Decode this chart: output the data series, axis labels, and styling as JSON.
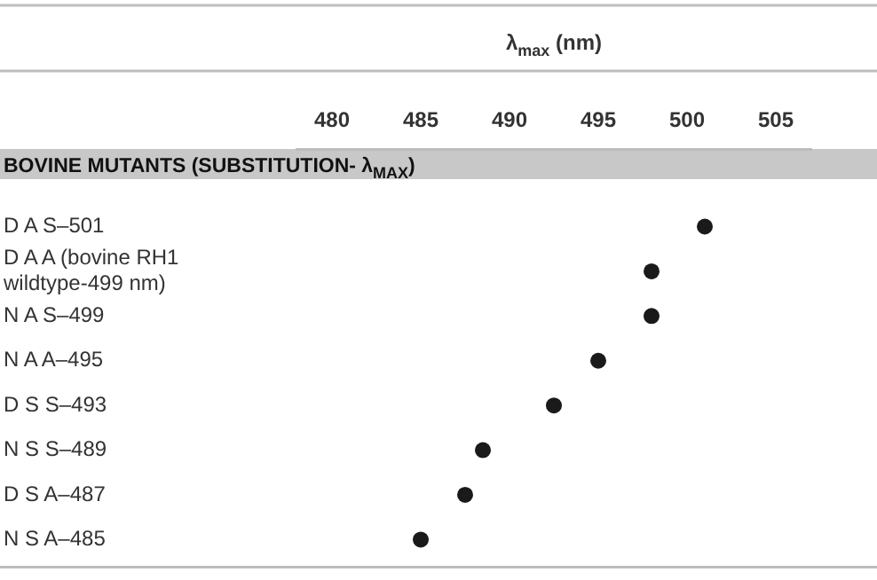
{
  "chart_data": {
    "type": "scatter",
    "orientation": "horizontal",
    "title": "λ$_{max}$ (nm)",
    "subtitle": "BOVINE MUTANTS (SUBSTITUTION- λ$_{MAX}$)",
    "categories": [
      "D A S–501",
      "D A A (bovine RH1 wildtype-499 nm)",
      "N A S–499",
      "N A A–495",
      "D S S–493",
      "N S S–489",
      "D S A–487",
      "N S A–485"
    ],
    "values": [
      501,
      498,
      498,
      495,
      492.5,
      488.5,
      487.5,
      485
    ],
    "color": "#1a1a1a",
    "marker": "circle",
    "xlim": [
      478,
      507
    ],
    "xticks": [
      480,
      485,
      490,
      495,
      500,
      505
    ],
    "grid": false,
    "legend": false
  }
}
